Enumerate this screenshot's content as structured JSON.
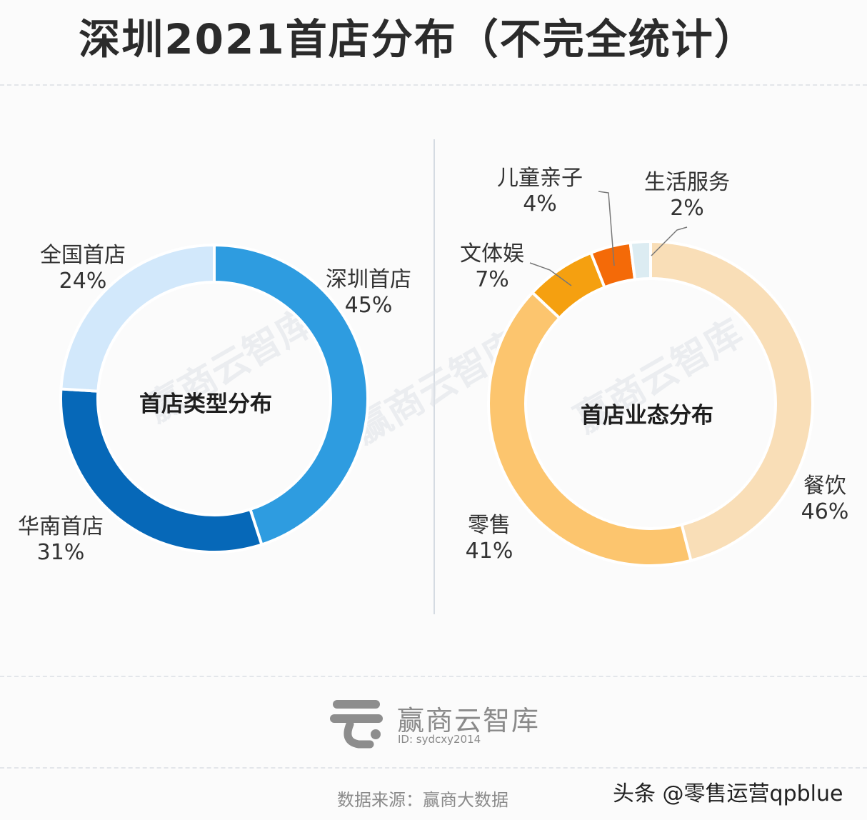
{
  "title": "深圳2021首店分布（不完全统计）",
  "chart_data": [
    {
      "type": "pie",
      "center_label": "首店类型分布",
      "categories": [
        "深圳首店",
        "华南首店",
        "全国首店"
      ],
      "values": [
        45,
        31,
        24
      ],
      "labels": [
        "45%",
        "31%",
        "24%"
      ],
      "colors": [
        "#2e9ce0",
        "#0668b8",
        "#d2e8fb"
      ]
    },
    {
      "type": "pie",
      "center_label": "首店业态分布",
      "categories": [
        "餐饮",
        "零售",
        "文体娱",
        "儿童亲子",
        "生活服务"
      ],
      "values": [
        46,
        41,
        7,
        4,
        2
      ],
      "labels": [
        "46%",
        "41%",
        "7%",
        "4%",
        "2%"
      ],
      "colors": [
        "#f9deb7",
        "#fcc56e",
        "#f5a010",
        "#f46a08",
        "#dcecf2"
      ]
    }
  ],
  "watermark": "赢商云智库",
  "logo": {
    "name": "赢商云智库",
    "id": "ID: sydcxy2014"
  },
  "source": "数据来源：赢商大数据",
  "credit": "头条 @零售运营qpblue"
}
